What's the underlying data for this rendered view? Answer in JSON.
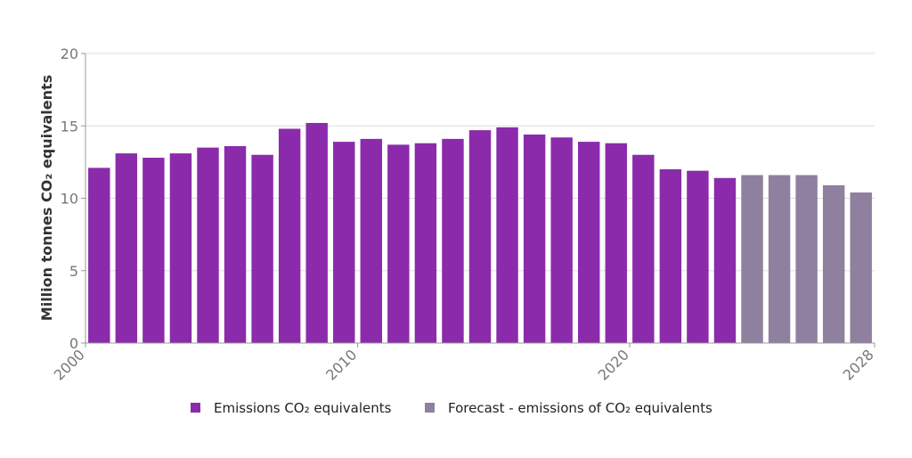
{
  "chart_data": {
    "type": "bar",
    "ylabel": "Million tonnes CO₂ equivalents",
    "ylim": [
      0,
      20
    ],
    "yticks": [
      0,
      5,
      10,
      15,
      20
    ],
    "xticks": [
      2000,
      2010,
      2020,
      2028
    ],
    "grid": "horizontal",
    "legend_position": "bottom",
    "series": [
      {
        "name": "Emissions CO₂ equivalents",
        "color": "#8b2bab",
        "x": [
          2000,
          2001,
          2002,
          2003,
          2004,
          2005,
          2006,
          2007,
          2008,
          2009,
          2010,
          2011,
          2012,
          2013,
          2014,
          2015,
          2016,
          2017,
          2018,
          2019,
          2020,
          2021,
          2022,
          2023
        ],
        "values": [
          12.1,
          13.1,
          12.8,
          13.1,
          13.5,
          13.6,
          13.0,
          14.8,
          15.2,
          13.9,
          14.1,
          13.7,
          13.8,
          14.1,
          14.7,
          14.9,
          14.4,
          14.2,
          13.9,
          13.8,
          13.0,
          12.0,
          11.9,
          11.4
        ]
      },
      {
        "name": "Forecast - emissions of CO₂ equivalents",
        "color": "#8f80a0",
        "x": [
          2024,
          2025,
          2026,
          2027,
          2028
        ],
        "values": [
          11.6,
          11.6,
          11.6,
          10.9,
          10.4
        ]
      }
    ]
  }
}
